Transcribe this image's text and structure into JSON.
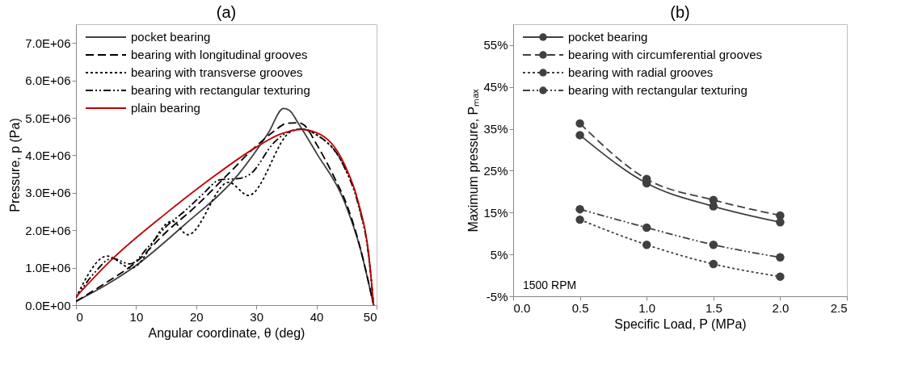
{
  "chart_data": [
    {
      "type": "line",
      "title": "(a)",
      "xlabel": "Angular coordinate, θ (deg)",
      "ylabel": "Pressure, p (Pa)",
      "xlim": [
        0,
        50
      ],
      "xticks": [
        0,
        10,
        20,
        30,
        40,
        50
      ],
      "ylim": [
        0,
        7500000
      ],
      "yticks": [
        {
          "value": 0,
          "label": "0.0E+00"
        },
        {
          "value": 1000000,
          "label": "1.0E+06"
        },
        {
          "value": 2000000,
          "label": "2.0E+06"
        },
        {
          "value": 3000000,
          "label": "3.0E+06"
        },
        {
          "value": 4000000,
          "label": "4.0E+06"
        },
        {
          "value": 5000000,
          "label": "5.0E+06"
        },
        {
          "value": 6000000,
          "label": "6.0E+06"
        },
        {
          "value": 7000000,
          "label": "7.0E+06"
        }
      ],
      "grid": false,
      "legend": "top left",
      "marker": "none",
      "series": [
        {
          "name": "pocket bearing",
          "color": "#404040",
          "line_style": "solid",
          "x": [
            0,
            10,
            18,
            27,
            32,
            34.5,
            35.5,
            37,
            40,
            44.6,
            47.3,
            49.5
          ],
          "values": [
            100000,
            1060000,
            2140000,
            3490000,
            4600000,
            5250000,
            5200000,
            4850000,
            4060000,
            2780000,
            1500000,
            0
          ]
        },
        {
          "name": "bearing with longitudinal grooves",
          "color": "#000000",
          "line_style": "dashed",
          "x": [
            0,
            5,
            10,
            15,
            20,
            25,
            30,
            33,
            35,
            37,
            38,
            40,
            43,
            45,
            47,
            49.5
          ],
          "values": [
            100000,
            600000,
            1150000,
            1950000,
            2650000,
            3450000,
            4250000,
            4650000,
            4850000,
            4870000,
            4800000,
            4300000,
            3400000,
            2700000,
            1700000,
            0
          ]
        },
        {
          "name": "bearing with transverse grooves",
          "color": "#000000",
          "line_style": "dotted",
          "x": [
            0,
            5.2,
            9.2,
            16,
            18.6,
            25.4,
            28.7,
            35.7,
            37.5,
            40,
            44.6,
            47,
            48.7,
            49.5
          ],
          "values": [
            200000,
            1310000,
            990000,
            2240000,
            1880000,
            3280000,
            2930000,
            4630000,
            4700000,
            4550000,
            3700000,
            2700000,
            1300000,
            0
          ]
        },
        {
          "name": "bearing with rectangular texturing",
          "color": "#000000",
          "line_style": "dashdot",
          "x": [
            0,
            3,
            6,
            9,
            12,
            15,
            18,
            21,
            24,
            27,
            29,
            33,
            35,
            37.5,
            40,
            44.6,
            47,
            48.7,
            49.5
          ],
          "values": [
            200000,
            850000,
            1250000,
            1100000,
            1550000,
            2100000,
            2500000,
            2950000,
            3350000,
            3380000,
            3500000,
            4350000,
            4600000,
            4700000,
            4550000,
            3700000,
            2650000,
            1300000,
            0
          ]
        },
        {
          "name": "plain bearing",
          "color": "#c00000",
          "line_style": "solid",
          "x": [
            0,
            6.1,
            15.05,
            22.2,
            29.8,
            33.9,
            37.5,
            40.1,
            44.6,
            46.9,
            48.7,
            49.5
          ],
          "values": [
            220000,
            1240000,
            2460000,
            3350000,
            4200000,
            4560000,
            4690000,
            4600000,
            3780000,
            2780000,
            1350000,
            0
          ]
        }
      ]
    },
    {
      "type": "line",
      "title": "(b)",
      "xlabel": "Specific Load, P (MPa)",
      "ylabel": "Maximum pressure, Pₘₐₓ",
      "xlim": [
        0,
        2.5
      ],
      "xticks": [
        {
          "value": 0,
          "label": "0.0"
        },
        0.5,
        {
          "value": 1,
          "label": "1.0"
        },
        1.5,
        {
          "value": 2,
          "label": "2.0"
        },
        2.5
      ],
      "ylim": [
        -5,
        60
      ],
      "yticks": [
        {
          "value": -5,
          "label": "-5%"
        },
        {
          "value": 5,
          "label": "5%"
        },
        {
          "value": 15,
          "label": "15%"
        },
        {
          "value": 25,
          "label": "25%"
        },
        {
          "value": 35,
          "label": "35%"
        },
        {
          "value": 45,
          "label": "45%"
        },
        {
          "value": 55,
          "label": "55%"
        }
      ],
      "grid": false,
      "legend": "top left",
      "marker": "circle",
      "annotations": [
        "1500 RPM"
      ],
      "x": [
        0.5,
        1.0,
        1.5,
        2.0
      ],
      "series": [
        {
          "name": "pocket bearing",
          "color": "#404040",
          "line_style": "solid",
          "values": [
            33.5,
            22,
            16.5,
            12.7
          ]
        },
        {
          "name": "bearing with circumferential grooves",
          "color": "#404040",
          "line_style": "dashed",
          "values": [
            36.3,
            23,
            18,
            14.3
          ]
        },
        {
          "name": "bearing with radial grooves",
          "color": "#404040",
          "line_style": "dotted",
          "values": [
            13.3,
            7.3,
            2.7,
            -0.3
          ]
        },
        {
          "name": "bearing with rectangular texturing",
          "color": "#404040",
          "line_style": "dashdot",
          "values": [
            15.8,
            11.4,
            7.3,
            4.3
          ]
        }
      ]
    }
  ]
}
